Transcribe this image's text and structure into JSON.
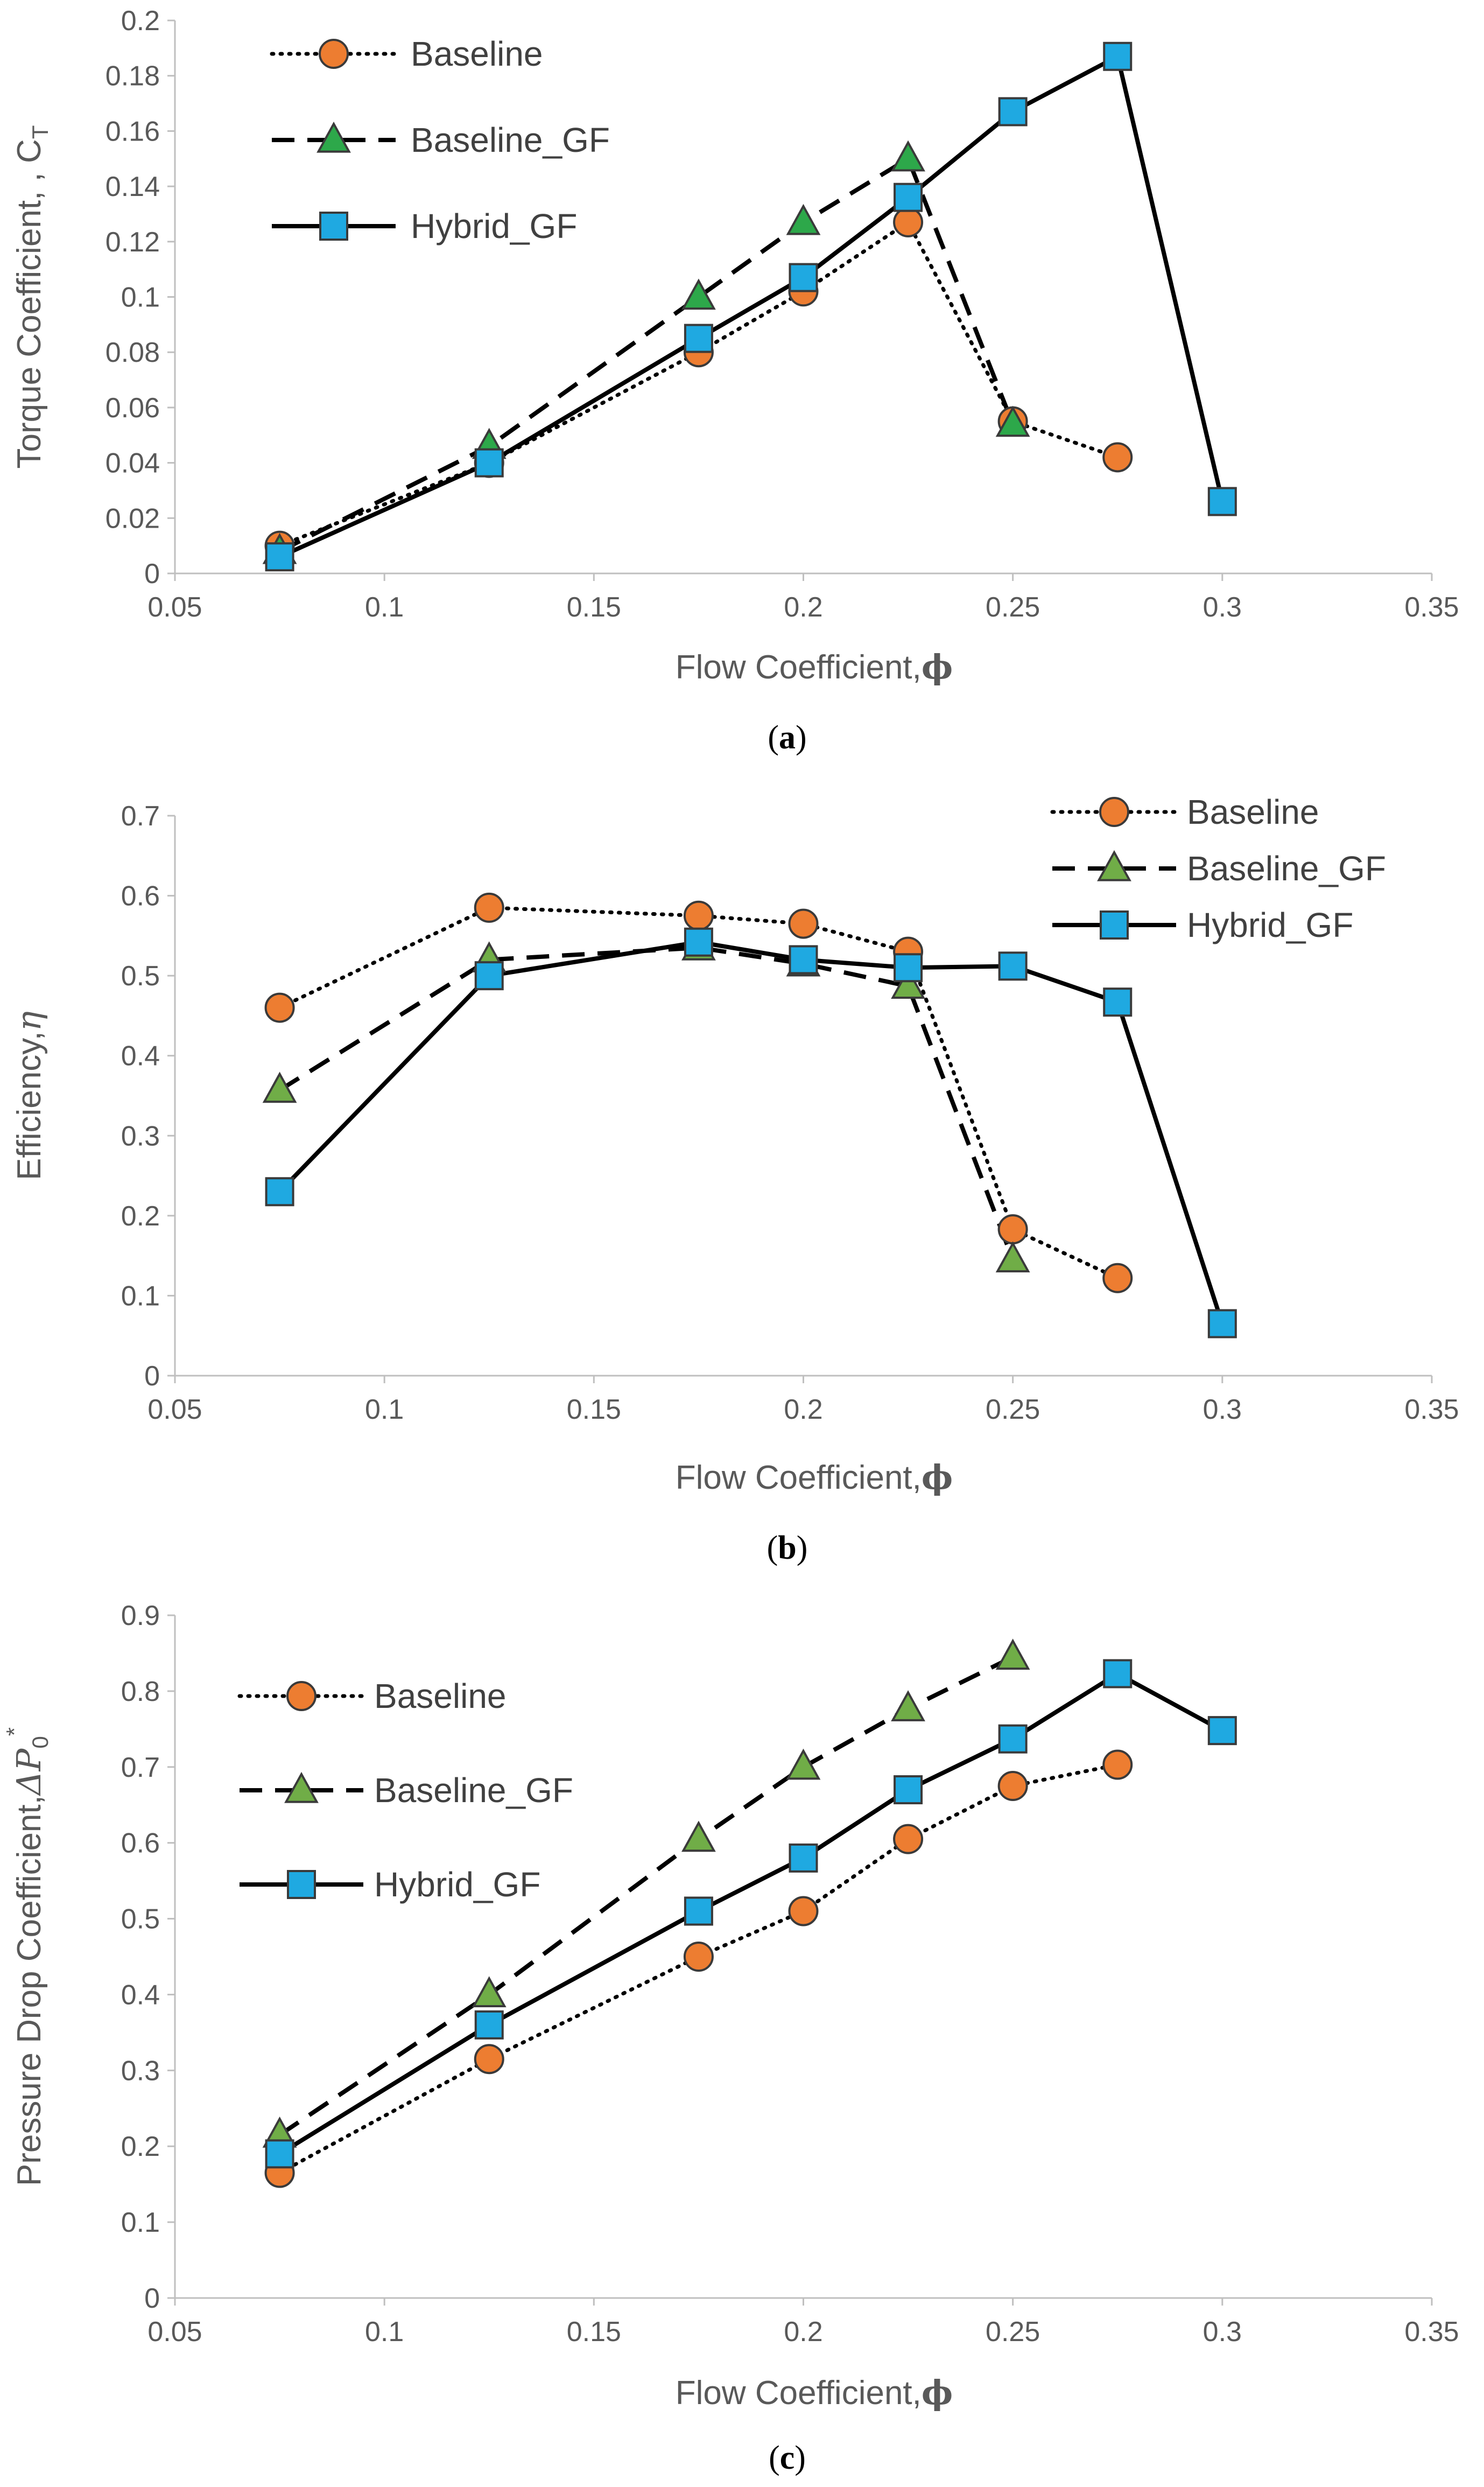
{
  "chart_data": [
    {
      "type": "line",
      "panel_label": "(a)",
      "xlabel": "Flow Coefficient,",
      "xlabel_symbol": "ϕ",
      "ylabel": "Torque Coefficient, , C",
      "ylabel_sub": "T",
      "xlim": [
        0.05,
        0.35
      ],
      "ylim": [
        0,
        0.2
      ],
      "xticks": [
        "0.05",
        "0.1",
        "0.15",
        "0.2",
        "0.25",
        "0.3",
        "0.35"
      ],
      "yticks": [
        "0",
        "0.02",
        "0.04",
        "0.06",
        "0.08",
        "0.1",
        "0.12",
        "0.14",
        "0.16",
        "0.18",
        "0.2"
      ],
      "legend_position": "top-left",
      "series": [
        {
          "name": "Baseline",
          "marker": "circle",
          "line": "dotted",
          "color": "#ED7D31",
          "x": [
            0.075,
            0.125,
            0.175,
            0.2,
            0.225,
            0.25,
            0.275
          ],
          "y": [
            0.01,
            0.04,
            0.08,
            0.102,
            0.127,
            0.055,
            0.042
          ]
        },
        {
          "name": "Baseline_GF",
          "marker": "triangle",
          "line": "dashed",
          "color": "#2DA84A",
          "x": [
            0.075,
            0.125,
            0.175,
            0.2,
            0.225,
            0.25
          ],
          "y": [
            0.008,
            0.046,
            0.1,
            0.127,
            0.15,
            0.054
          ]
        },
        {
          "name": "Hybrid_GF",
          "marker": "square",
          "line": "solid",
          "color": "#1FA9E1",
          "x": [
            0.075,
            0.125,
            0.175,
            0.2,
            0.225,
            0.25,
            0.275,
            0.3
          ],
          "y": [
            0.006,
            0.04,
            0.085,
            0.107,
            0.136,
            0.167,
            0.187,
            0.026
          ]
        }
      ]
    },
    {
      "type": "line",
      "panel_label": "(b)",
      "xlabel": "Flow Coefficient,",
      "xlabel_symbol": "ϕ",
      "ylabel": "Efficiency,",
      "ylabel_symbol": "η",
      "xlim": [
        0.05,
        0.35
      ],
      "ylim": [
        0,
        0.7
      ],
      "xticks": [
        "0.05",
        "0.1",
        "0.15",
        "0.2",
        "0.25",
        "0.3",
        "0.35"
      ],
      "yticks": [
        "0",
        "0.1",
        "0.2",
        "0.3",
        "0.4",
        "0.5",
        "0.6",
        "0.7"
      ],
      "legend_position": "top-right",
      "series": [
        {
          "name": "Baseline",
          "marker": "circle",
          "line": "dotted",
          "color": "#ED7D31",
          "x": [
            0.075,
            0.125,
            0.175,
            0.2,
            0.225,
            0.25,
            0.275
          ],
          "y": [
            0.46,
            0.585,
            0.575,
            0.565,
            0.53,
            0.183,
            0.122
          ]
        },
        {
          "name": "Baseline_GF",
          "marker": "triangle",
          "line": "dashed",
          "color": "#70AD47",
          "x": [
            0.075,
            0.125,
            0.175,
            0.2,
            0.225,
            0.25
          ],
          "y": [
            0.357,
            0.52,
            0.535,
            0.515,
            0.487,
            0.145
          ]
        },
        {
          "name": "Hybrid_GF",
          "marker": "square",
          "line": "solid",
          "color": "#1FA9E1",
          "x": [
            0.075,
            0.125,
            0.175,
            0.2,
            0.225,
            0.25,
            0.275,
            0.3
          ],
          "y": [
            0.23,
            0.5,
            0.542,
            0.52,
            0.51,
            0.512,
            0.467,
            0.065
          ]
        }
      ]
    },
    {
      "type": "line",
      "panel_label": "(c)",
      "xlabel": "Flow Coefficient,",
      "xlabel_symbol": "ϕ",
      "ylabel": "Pressure Drop Coefficient,",
      "ylabel_symbol": "ΔP",
      "ylabel_sub": "0",
      "ylabel_sup": "*",
      "xlim": [
        0.05,
        0.35
      ],
      "ylim": [
        0,
        0.9
      ],
      "xticks": [
        "0.05",
        "0.1",
        "0.15",
        "0.2",
        "0.25",
        "0.3",
        "0.35"
      ],
      "yticks": [
        "0",
        "0.1",
        "0.2",
        "0.3",
        "0.4",
        "0.5",
        "0.6",
        "0.7",
        "0.8",
        "0.9"
      ],
      "legend_position": "top-left",
      "series": [
        {
          "name": "Baseline",
          "marker": "circle",
          "line": "dotted",
          "color": "#ED7D31",
          "x": [
            0.075,
            0.125,
            0.175,
            0.2,
            0.225,
            0.25,
            0.275
          ],
          "y": [
            0.165,
            0.315,
            0.45,
            0.51,
            0.605,
            0.675,
            0.703
          ]
        },
        {
          "name": "Baseline_GF",
          "marker": "triangle",
          "line": "dashed",
          "color": "#70AD47",
          "x": [
            0.075,
            0.125,
            0.175,
            0.2,
            0.225,
            0.25
          ],
          "y": [
            0.215,
            0.4,
            0.605,
            0.7,
            0.777,
            0.845
          ]
        },
        {
          "name": "Hybrid_GF",
          "marker": "square",
          "line": "solid",
          "color": "#1FA9E1",
          "x": [
            0.075,
            0.125,
            0.175,
            0.2,
            0.225,
            0.25,
            0.275,
            0.3
          ],
          "y": [
            0.19,
            0.36,
            0.51,
            0.58,
            0.67,
            0.737,
            0.823,
            0.748
          ]
        }
      ]
    }
  ]
}
